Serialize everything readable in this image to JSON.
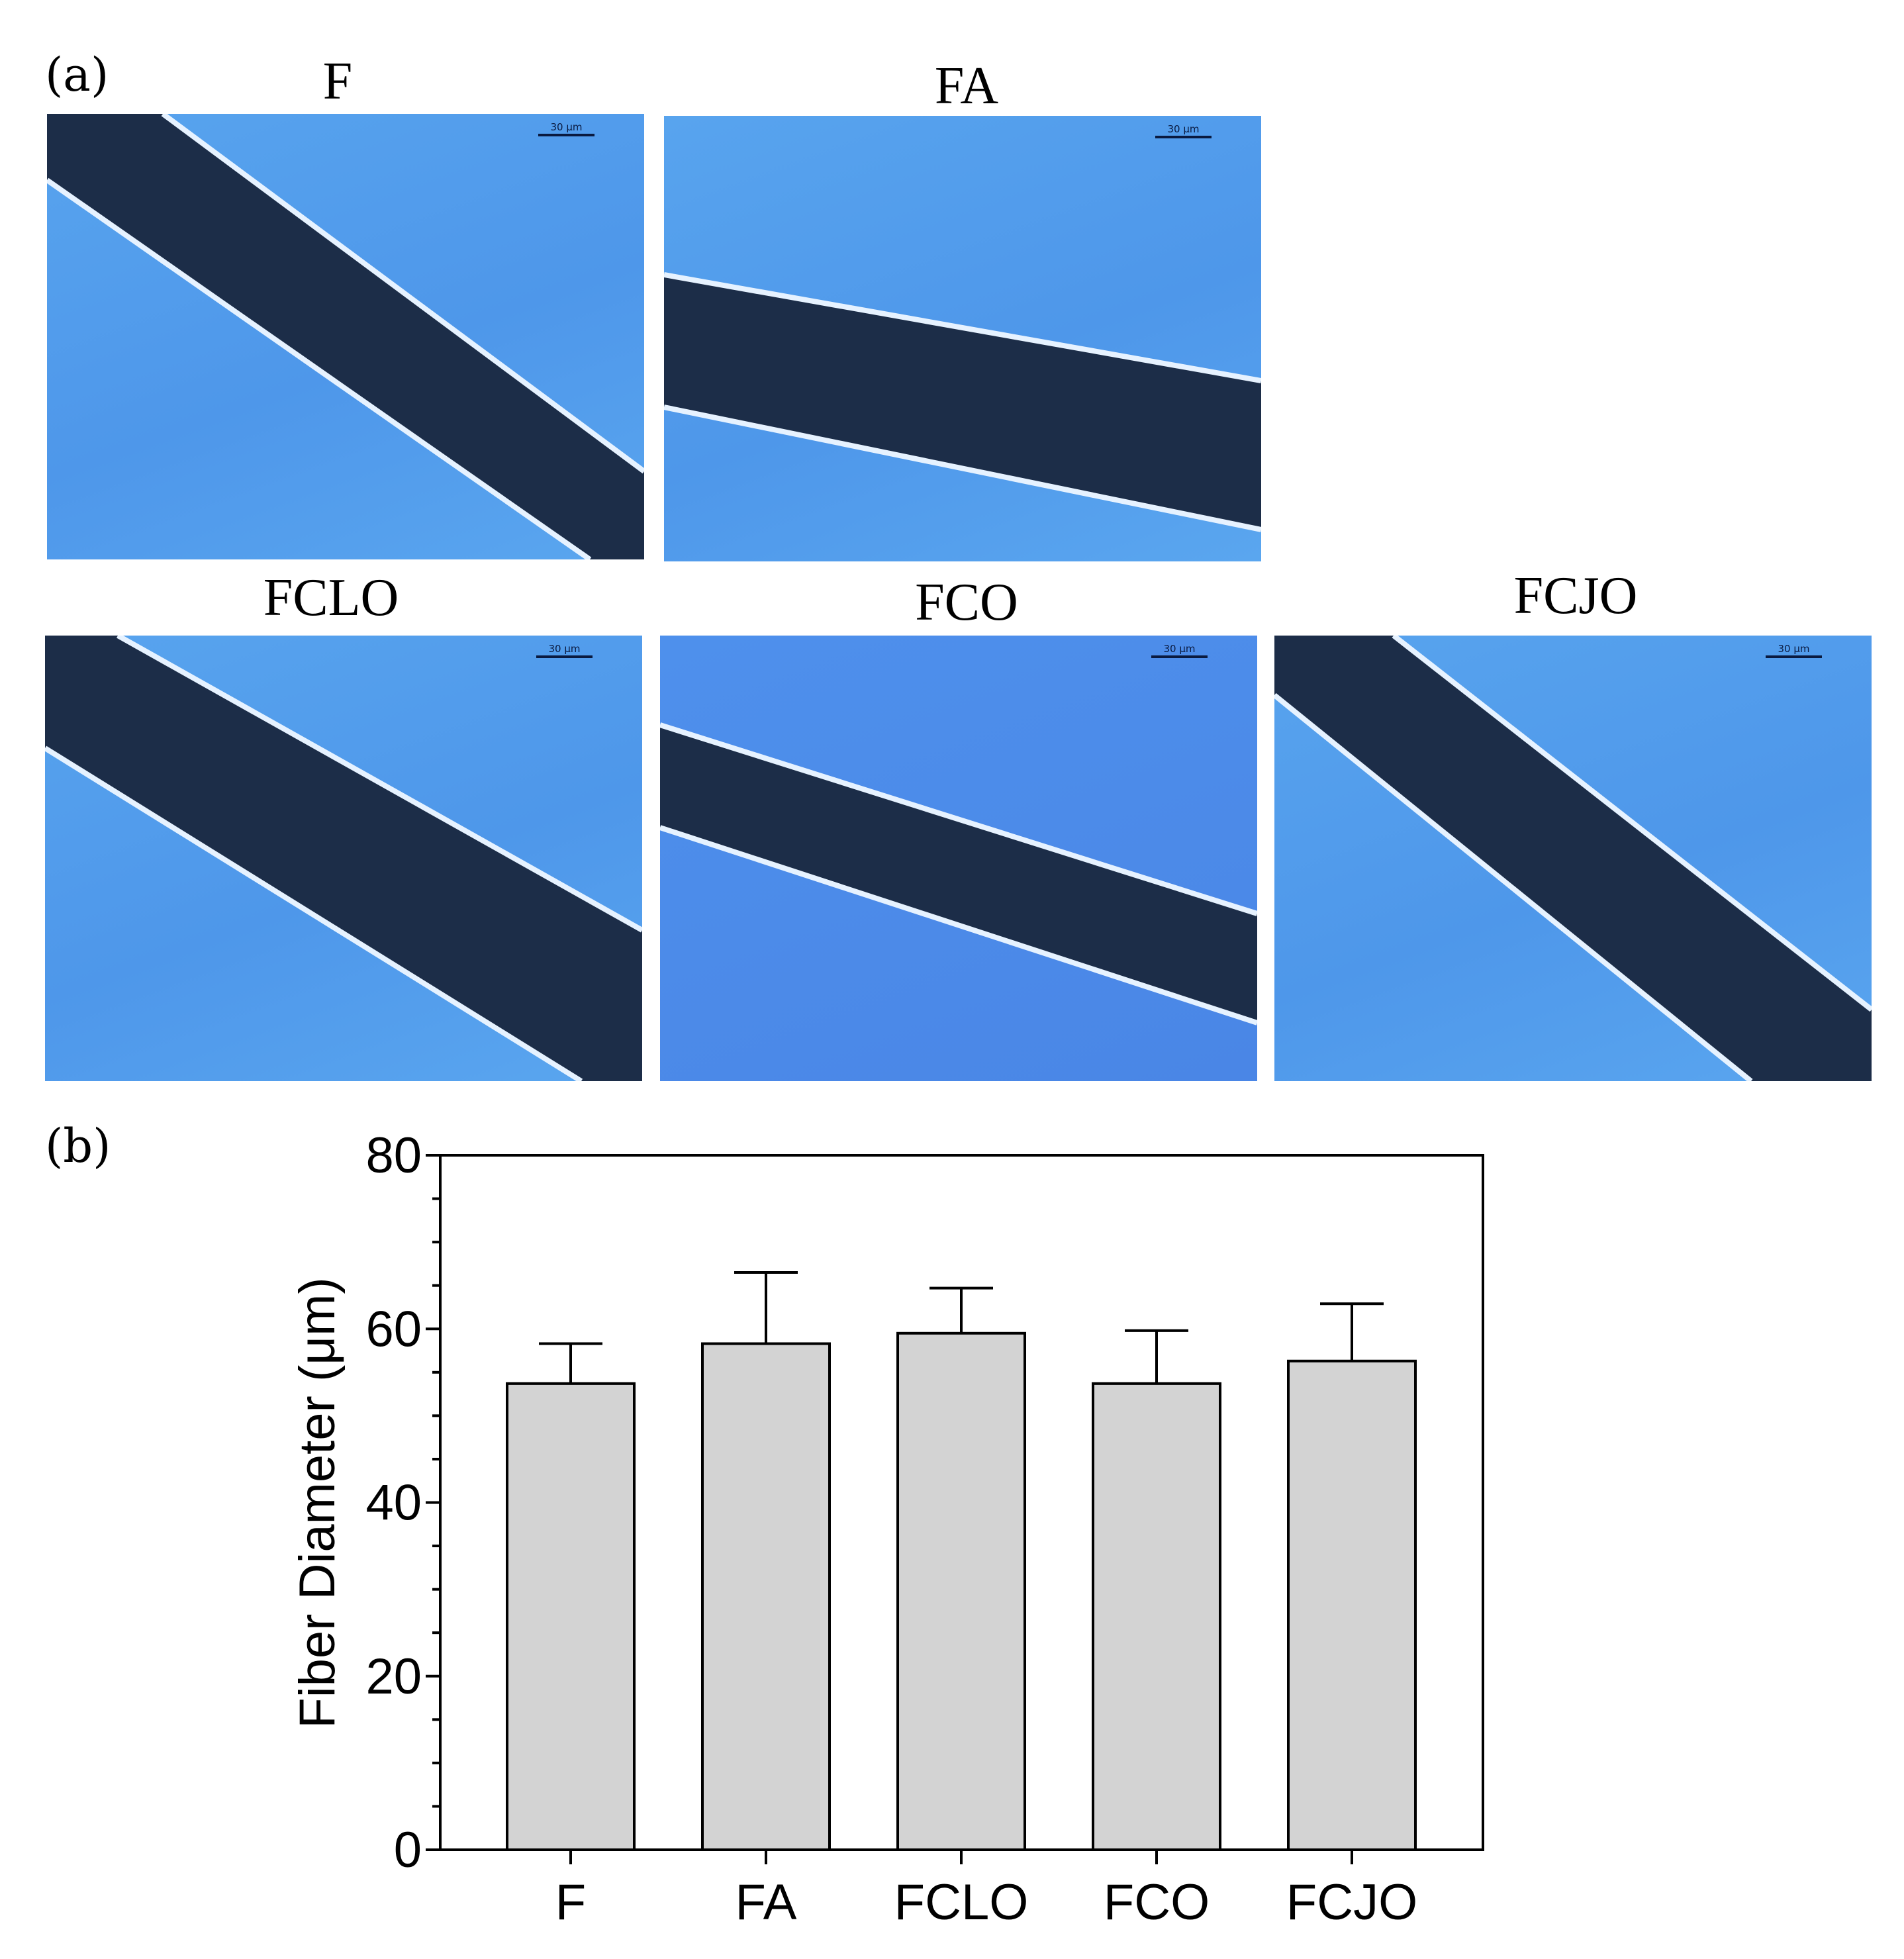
{
  "panel_a_label": "(a)",
  "panel_b_label": "(b)",
  "micrographs": [
    {
      "title": "F",
      "scale_label": "30 µm"
    },
    {
      "title": "FA",
      "scale_label": "30 µm"
    },
    {
      "title": "FCLO",
      "scale_label": "30 µm"
    },
    {
      "title": "FCO",
      "scale_label": "30 µm"
    },
    {
      "title": "FCJO",
      "scale_label": "30 µm"
    }
  ],
  "colors": {
    "micrograph_background": "#58a4ee",
    "fiber": "#1c2d48",
    "fiber_edge": "#e6f2ff",
    "bar_fill": "#d3d3d3",
    "axis": "#000000"
  },
  "chart_data": {
    "type": "bar",
    "categories": [
      "F",
      "FA",
      "FCLO",
      "FCO",
      "FCJO"
    ],
    "values": [
      53.7,
      58.3,
      59.5,
      53.7,
      56.3
    ],
    "error_upper": [
      4.6,
      8.2,
      5.2,
      6.1,
      6.6
    ],
    "title": "",
    "xlabel": "",
    "ylabel": "Fiber Diameter (μm)",
    "ylim": [
      0,
      80
    ],
    "yticks": [
      0,
      20,
      40,
      60,
      80
    ],
    "grid": false
  }
}
